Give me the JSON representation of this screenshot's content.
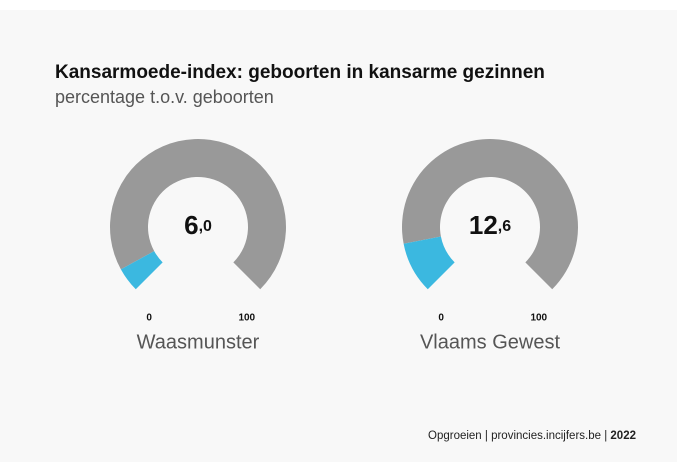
{
  "chart_data": {
    "type": "gauge",
    "title": "Kansarmoede-index: geboorten in kansarme gezinnen",
    "subtitle": "percentage t.o.v. geboorten",
    "categories": [
      "Waasmunster",
      "Vlaams Gewest"
    ],
    "values": [
      6.0,
      12.6
    ],
    "value_labels": [
      "6,0",
      "12,6"
    ],
    "ylim": [
      0,
      100
    ],
    "yticks": [
      0,
      100
    ],
    "color": "#3bb8e0",
    "track_color": "#999999"
  },
  "footer": {
    "source": "Opgroeien | provincies.incijfers.be |",
    "year": "2022"
  }
}
